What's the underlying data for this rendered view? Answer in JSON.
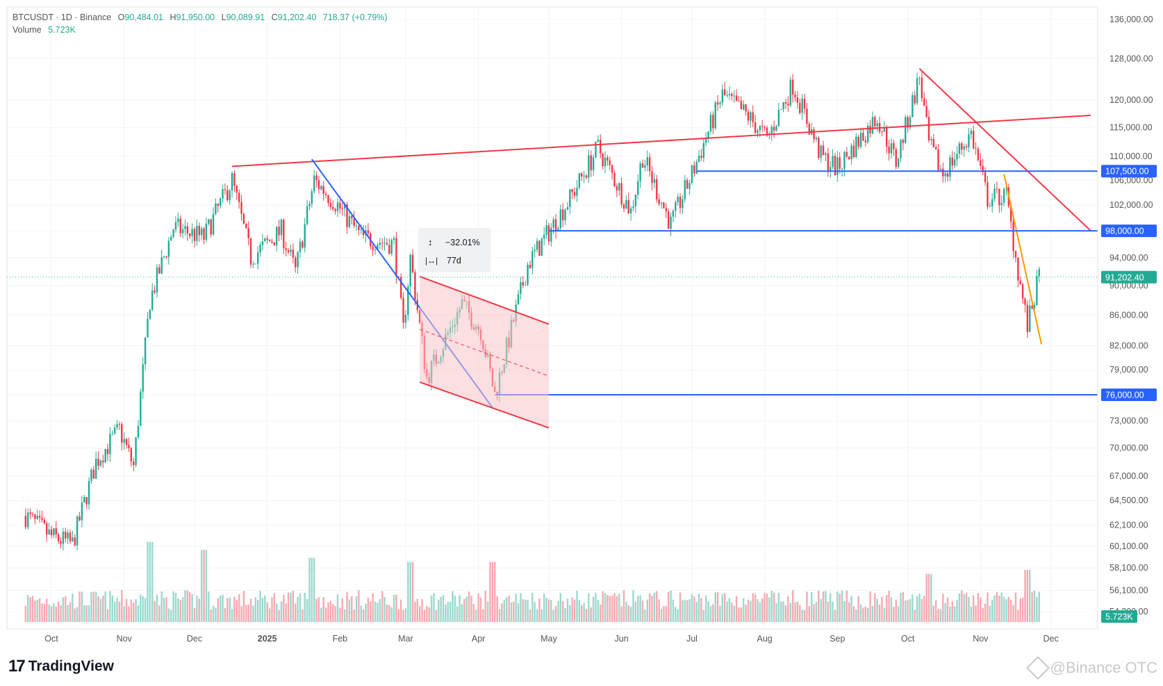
{
  "header": {
    "symbol": "BTCUSDT · 1D · Binance",
    "open_label": "O",
    "open": "90,484.01",
    "high_label": "H",
    "high": "91,950.00",
    "low_label": "L",
    "low": "90,089.91",
    "close_label": "C",
    "close": "91,202.40",
    "change": "718.37 (+0.79%)",
    "volume_label": "Volume",
    "volume": "5.723K"
  },
  "measure": {
    "price_change": "−32.01%",
    "duration": "77d"
  },
  "branding": {
    "logo_text": "TradingView",
    "watermark": "@Binance OTC"
  },
  "colors": {
    "up": "#22ab94",
    "down": "#f23645",
    "blue_line": "#2962ff",
    "red_line": "#f23645",
    "orange_line": "#ff9800",
    "channel_fill": "#f8c4c8"
  },
  "chart_data": {
    "type": "candlestick",
    "symbol": "BTCUSDT",
    "interval": "1D",
    "exchange": "Binance",
    "x_ticks": [
      "Oct",
      "Nov",
      "Dec",
      "2025",
      "Feb",
      "Mar",
      "Apr",
      "May",
      "Jun",
      "Jul",
      "Aug",
      "Sep",
      "Oct",
      "Nov",
      "Dec"
    ],
    "y_ticks": [
      "136,000.00",
      "128,000.00",
      "120,000.00",
      "115,000.00",
      "110,000.00",
      "106,000.00",
      "102,000.00",
      "98,000.00",
      "94,000.00",
      "90,000.00",
      "86,000.00",
      "82,000.00",
      "79,000.00",
      "76,000.00",
      "73,000.00",
      "70,000.00",
      "67,000.00",
      "64,500.00",
      "62,100.00",
      "60,100.00",
      "58,100.00",
      "56,100.00",
      "54,300.00"
    ],
    "y_scale": "log",
    "price_tags": [
      {
        "label": "107,500.00",
        "value": 107500,
        "color": "#2962ff"
      },
      {
        "label": "98,000.00",
        "value": 98000,
        "color": "#2962ff"
      },
      {
        "label": "91,202.40",
        "value": 91202.4,
        "color": "#22ab94"
      },
      {
        "label": "76,000.00",
        "value": 76000,
        "color": "#2962ff"
      }
    ],
    "volume_tag": {
      "label": "5.723K",
      "color": "#22ab94"
    },
    "price_path": [
      [
        "2024-09-20",
        63000
      ],
      [
        "2024-10-01",
        61000
      ],
      [
        "2024-10-10",
        60300
      ],
      [
        "2024-10-20",
        68500
      ],
      [
        "2024-10-30",
        72000
      ],
      [
        "2024-11-05",
        68000
      ],
      [
        "2024-11-12",
        88000
      ],
      [
        "2024-11-22",
        98500
      ],
      [
        "2024-12-05",
        97000
      ],
      [
        "2024-12-17",
        106000
      ],
      [
        "2024-12-25",
        94000
      ],
      [
        "2025-01-07",
        98000
      ],
      [
        "2025-01-13",
        92000
      ],
      [
        "2025-01-21",
        106000
      ],
      [
        "2025-01-31",
        102000
      ],
      [
        "2025-02-10",
        97000
      ],
      [
        "2025-02-24",
        96000
      ],
      [
        "2025-02-28",
        84000
      ],
      [
        "2025-03-03",
        94000
      ],
      [
        "2025-03-10",
        78000
      ],
      [
        "2025-03-25",
        87500
      ],
      [
        "2025-04-02",
        84000
      ],
      [
        "2025-04-08",
        76000
      ],
      [
        "2025-04-22",
        93000
      ],
      [
        "2025-05-10",
        103000
      ],
      [
        "2025-05-22",
        111500
      ],
      [
        "2025-06-05",
        101000
      ],
      [
        "2025-06-10",
        110000
      ],
      [
        "2025-06-22",
        99000
      ],
      [
        "2025-07-01",
        107000
      ],
      [
        "2025-07-14",
        121000
      ],
      [
        "2025-07-25",
        117000
      ],
      [
        "2025-08-02",
        113000
      ],
      [
        "2025-08-13",
        123000
      ],
      [
        "2025-08-25",
        110000
      ],
      [
        "2025-09-01",
        108000
      ],
      [
        "2025-09-18",
        117000
      ],
      [
        "2025-09-26",
        109000
      ],
      [
        "2025-10-06",
        124500
      ],
      [
        "2025-10-10",
        112000
      ],
      [
        "2025-10-16",
        107000
      ],
      [
        "2025-10-28",
        114000
      ],
      [
        "2025-11-04",
        103000
      ],
      [
        "2025-11-12",
        103500
      ],
      [
        "2025-11-17",
        92000
      ],
      [
        "2025-11-21",
        84500
      ],
      [
        "2025-11-26",
        91202.4
      ]
    ],
    "volume_spikes": [
      [
        "2024-11-12",
        1.0
      ],
      [
        "2024-12-05",
        0.9
      ],
      [
        "2025-01-20",
        0.8
      ],
      [
        "2025-03-03",
        0.75
      ],
      [
        "2025-04-07",
        0.75
      ],
      [
        "2025-10-10",
        0.6
      ],
      [
        "2025-11-21",
        0.65
      ]
    ],
    "drawings": [
      {
        "kind": "trendline",
        "color": "#f23645",
        "from": [
          "2024-12-17",
          108300
        ],
        "to": [
          "2025-12-18",
          117200
        ]
      },
      {
        "kind": "trendline",
        "color": "#f23645",
        "from": [
          "2025-10-06",
          126000
        ],
        "to": [
          "2025-12-18",
          98000
        ]
      },
      {
        "kind": "trendline",
        "color": "#2962ff",
        "from": [
          "2025-01-20",
          109500
        ],
        "to": [
          "2025-04-07",
          74500
        ]
      },
      {
        "kind": "trendline",
        "color": "#ff9800",
        "from": [
          "2025-11-11",
          107000
        ],
        "to": [
          "2025-11-27",
          82200
        ]
      },
      {
        "kind": "horizontal",
        "color": "#2962ff",
        "value": 107500,
        "from": "2025-07-03"
      },
      {
        "kind": "horizontal",
        "color": "#2962ff",
        "value": 98000,
        "from": "2025-05-01"
      },
      {
        "kind": "horizontal",
        "color": "#2962ff",
        "value": 76000,
        "from": "2025-04-08"
      },
      {
        "kind": "channel",
        "color": "#f23645",
        "from": "2025-03-07",
        "to": "2025-05-01",
        "upper": [
          91300,
          84800
        ],
        "lower": [
          77500,
          72200
        ]
      }
    ]
  }
}
